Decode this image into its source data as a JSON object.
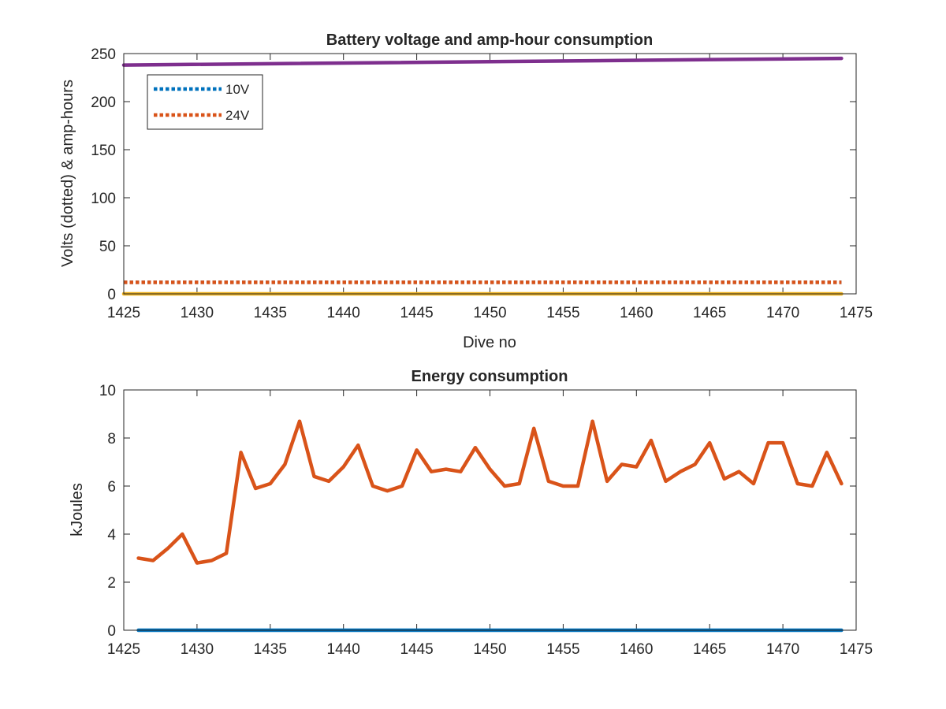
{
  "chart_data": [
    {
      "type": "line",
      "title": "Battery voltage and amp-hour consumption",
      "xlabel": "Dive no",
      "ylabel": "Volts (dotted) & amp-hours",
      "xlim": [
        1425,
        1475
      ],
      "ylim": [
        0,
        250
      ],
      "xticks": [
        "1425",
        "1430",
        "1435",
        "1440",
        "1445",
        "1450",
        "1455",
        "1460",
        "1465",
        "1470",
        "1475"
      ],
      "yticks": [
        "0",
        "50",
        "100",
        "150",
        "200",
        "250"
      ],
      "grid": false,
      "legend_position": "top-left",
      "legend": [
        "10V",
        "24V"
      ],
      "series": [
        {
          "name": "10V",
          "style": "dotted",
          "color": "#0072BD",
          "x": [
            1425,
            1474
          ],
          "values": [
            12,
            12
          ]
        },
        {
          "name": "24V",
          "style": "dotted",
          "color": "#D95319",
          "x": [
            1425,
            1474
          ],
          "values": [
            12,
            12
          ]
        },
        {
          "style": "solid",
          "color": "#EDB120",
          "x": [
            1425,
            1474
          ],
          "values": [
            0,
            0
          ]
        },
        {
          "style": "solid",
          "color": "#7E2F8E",
          "x": [
            1425,
            1474
          ],
          "values": [
            238,
            245
          ]
        }
      ]
    },
    {
      "type": "line",
      "title": "Energy consumption",
      "xlabel": "",
      "ylabel": "kJoules",
      "xlim": [
        1425,
        1475
      ],
      "ylim": [
        0,
        10
      ],
      "xticks": [
        "1425",
        "1430",
        "1435",
        "1440",
        "1445",
        "1450",
        "1455",
        "1460",
        "1465",
        "1470",
        "1475"
      ],
      "yticks": [
        "0",
        "2",
        "4",
        "6",
        "8",
        "10"
      ],
      "grid": false,
      "series": [
        {
          "style": "solid",
          "color": "#0072BD",
          "x": [
            1426,
            1474
          ],
          "values": [
            0,
            0
          ]
        },
        {
          "style": "solid",
          "color": "#D95319",
          "x": [
            1426,
            1427,
            1428,
            1429,
            1430,
            1431,
            1432,
            1433,
            1434,
            1435,
            1436,
            1437,
            1438,
            1439,
            1440,
            1441,
            1442,
            1443,
            1444,
            1445,
            1446,
            1447,
            1448,
            1449,
            1450,
            1451,
            1452,
            1453,
            1454,
            1455,
            1456,
            1457,
            1458,
            1459,
            1460,
            1461,
            1462,
            1463,
            1464,
            1465,
            1466,
            1467,
            1468,
            1469,
            1470,
            1471,
            1472,
            1473,
            1474
          ],
          "values": [
            3.0,
            2.9,
            3.4,
            4.0,
            2.8,
            2.9,
            3.2,
            7.4,
            5.9,
            6.1,
            6.9,
            8.7,
            6.4,
            6.2,
            6.8,
            7.7,
            6.0,
            5.8,
            6.0,
            7.5,
            6.6,
            6.7,
            6.6,
            7.6,
            6.7,
            6.0,
            6.1,
            8.4,
            6.2,
            6.0,
            6.0,
            8.7,
            6.2,
            6.9,
            6.8,
            7.9,
            6.2,
            6.6,
            6.9,
            7.8,
            6.3,
            6.6,
            6.1,
            7.8,
            7.8,
            6.1,
            6.0,
            7.4,
            6.1
          ]
        }
      ]
    }
  ]
}
